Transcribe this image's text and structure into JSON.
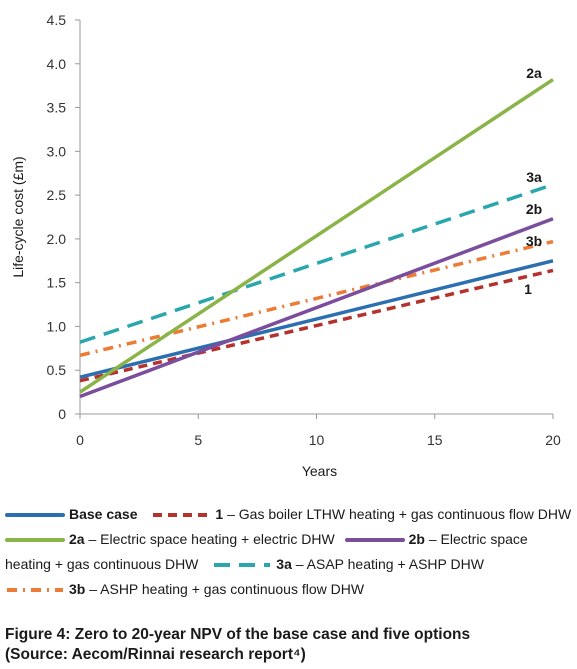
{
  "chart_data": {
    "type": "line",
    "xlabel": "Years",
    "ylabel": "Life-cycle cost  (£m)",
    "xlim": [
      0,
      20
    ],
    "ylim": [
      0,
      4.5
    ],
    "xticks": [
      "0",
      "5",
      "10",
      "15",
      "20"
    ],
    "yticks": [
      "0",
      "0.5",
      "1.0",
      "1.5",
      "2.0",
      "2.5",
      "3.0",
      "3.5",
      "4.0",
      "4.5"
    ],
    "grid": false,
    "legend_position": "bottom",
    "series": [
      {
        "name": "Base case",
        "code": "",
        "desc": "Base case",
        "end_label": "",
        "color": "#2c6fb0",
        "dash": "solid",
        "x": [
          0,
          20
        ],
        "y": [
          0.42,
          1.75
        ]
      },
      {
        "name": "1 – Gas boiler LTHW heating + gas continuous flow DHW",
        "code": "1",
        "desc": " – Gas boiler LTHW heating + gas continuous flow DHW",
        "end_label": "1",
        "color": "#b5322c",
        "dash": "dashed",
        "x": [
          0,
          20
        ],
        "y": [
          0.38,
          1.64
        ]
      },
      {
        "name": "2a – Electric space heating + electric DHW",
        "code": "2a",
        "desc": " – Electric space heating + electric DHW",
        "end_label": "2a",
        "color": "#8ab447",
        "dash": "solid",
        "x": [
          0,
          20
        ],
        "y": [
          0.25,
          3.82
        ]
      },
      {
        "name": "2b – Electric space heating + gas continuous DHW",
        "code": "2b",
        "desc": " – Electric space",
        "desc_cont": "heating + gas continuous DHW",
        "end_label": "2b",
        "color": "#7a4e9c",
        "dash": "solid",
        "x": [
          0,
          20
        ],
        "y": [
          0.2,
          2.23
        ]
      },
      {
        "name": "3a – ASAP heating + ASHP DHW",
        "code": "3a",
        "desc": " – ASAP heating + ASHP DHW",
        "end_label": "3a",
        "color": "#2aa6ad",
        "dash": "longdash",
        "x": [
          0,
          20
        ],
        "y": [
          0.82,
          2.62
        ]
      },
      {
        "name": "3b – ASHP heating + gas continuous flow DHW",
        "code": "3b",
        "desc": " – ASHP heating + gas continuous flow DHW",
        "end_label": "3b",
        "color": "#ec7b36",
        "dash": "dashdot",
        "x": [
          0,
          20
        ],
        "y": [
          0.67,
          1.97
        ]
      }
    ]
  },
  "caption": {
    "line1": "Figure 4: Zero to 20-year NPV of the base case and five options",
    "line2": "(Source: Aecom/Rinnai research report⁴)"
  }
}
